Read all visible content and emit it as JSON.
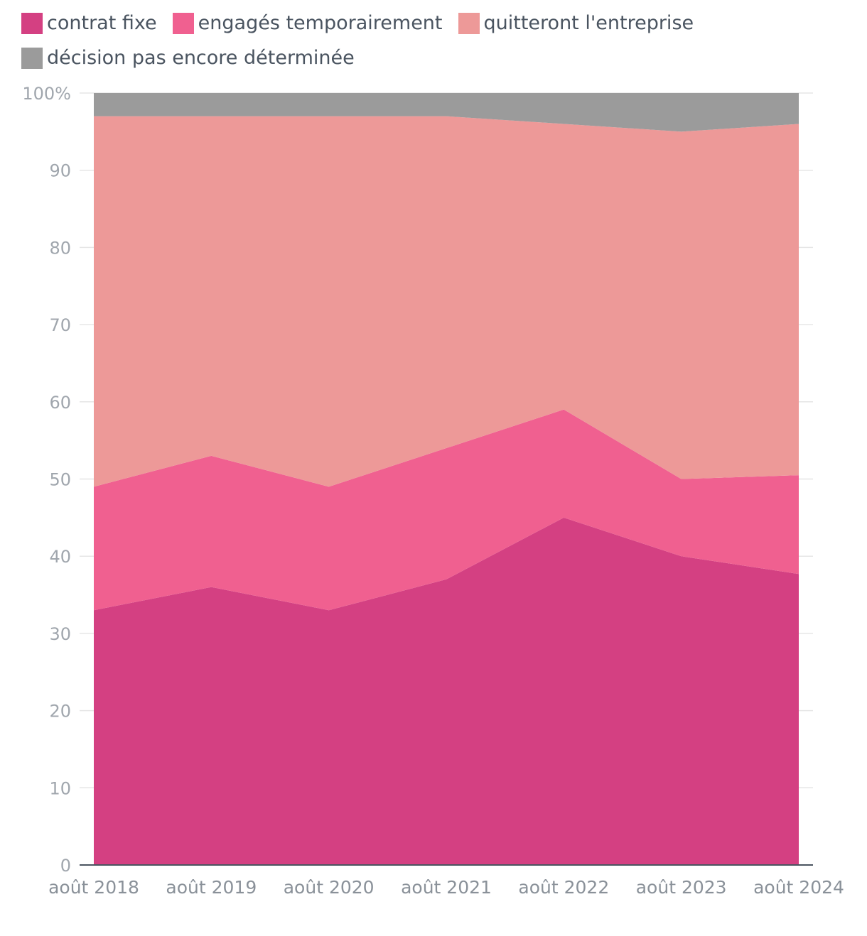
{
  "chart_data": {
    "type": "area",
    "stacked": true,
    "categories": [
      "août 2018",
      "août 2019",
      "août 2020",
      "août 2021",
      "août 2022",
      "août 2023",
      "août 2024"
    ],
    "series": [
      {
        "name": "contrat fixe",
        "color": "#d44082",
        "values": [
          33,
          36,
          33,
          37,
          45,
          40,
          37.7
        ]
      },
      {
        "name": "engagés temporairement",
        "color": "#f06090",
        "values": [
          16,
          17,
          16,
          17,
          14,
          10,
          12.8
        ]
      },
      {
        "name": "quitteront l'entreprise",
        "color": "#ed9998",
        "values": [
          48,
          44,
          48,
          43,
          37,
          45,
          45.5
        ]
      },
      {
        "name": "décision pas encore déterminée",
        "color": "#9b9b9b",
        "values": [
          3,
          3,
          3,
          3,
          4,
          5,
          4
        ]
      }
    ],
    "y_ticks": [
      "0",
      "10",
      "20",
      "30",
      "40",
      "50",
      "60",
      "70",
      "80",
      "90",
      "100%"
    ],
    "ylim": [
      0,
      100
    ],
    "grid": true,
    "legend_position": "top"
  }
}
